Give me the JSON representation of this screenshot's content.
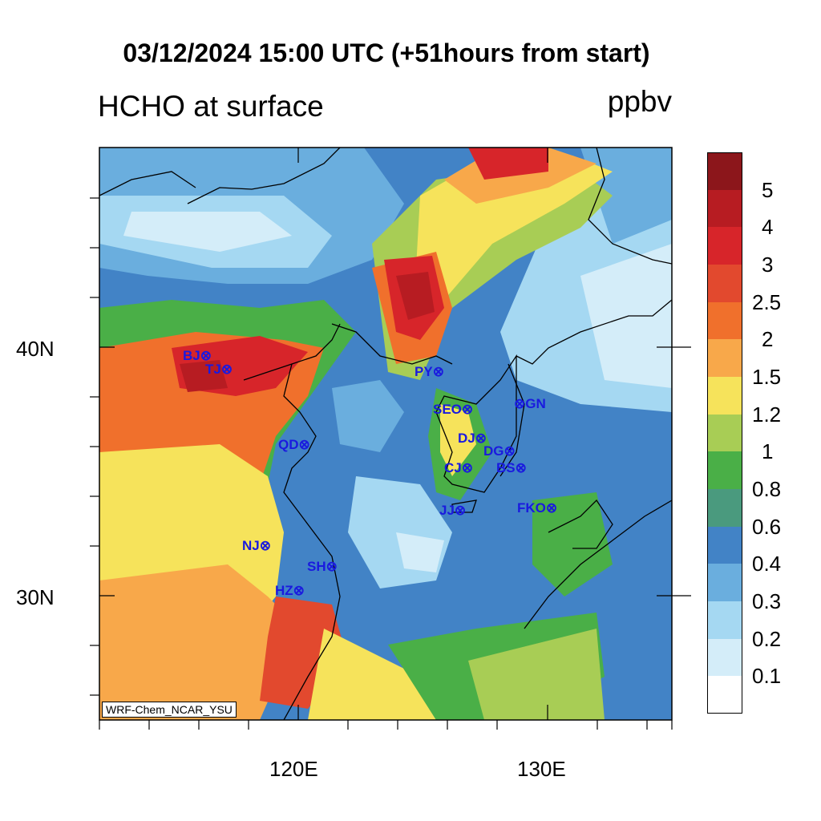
{
  "header": {
    "title": "03/12/2024 15:00 UTC (+51hours from start)",
    "subtitle": "HCHO at surface",
    "units": "ppbv"
  },
  "axes": {
    "lat_labels": [
      "40N",
      "30N"
    ],
    "lon_labels": [
      "120E",
      "130E"
    ]
  },
  "credit": "WRF-Chem_NCAR_YSU",
  "colorbar": {
    "labels": [
      "5",
      "4",
      "3",
      "2.5",
      "2",
      "1.5",
      "1.2",
      "1",
      "0.8",
      "0.6",
      "0.4",
      "0.3",
      "0.2",
      "0.1"
    ],
    "colors": [
      "#8c161b",
      "#b71c22",
      "#d7252a",
      "#e2492e",
      "#f0702c",
      "#f8a84a",
      "#f6e35b",
      "#a8cd55",
      "#4aaf47",
      "#4a9a7e",
      "#4283c6",
      "#6aaede",
      "#a5d8f2",
      "#d4edf9",
      "#ffffff"
    ]
  },
  "stations": [
    {
      "label": "BJ",
      "marker": "⊗"
    },
    {
      "label": "TJ",
      "marker": "⊗"
    },
    {
      "label": "PY",
      "marker": "⊗"
    },
    {
      "label": "GN",
      "marker": "⊗"
    },
    {
      "label": "SEO",
      "marker": "⊗"
    },
    {
      "label": "DJ",
      "marker": "⊗"
    },
    {
      "label": "QD",
      "marker": "⊗"
    },
    {
      "label": "DG",
      "marker": "⊗"
    },
    {
      "label": "CJ",
      "marker": "⊗"
    },
    {
      "label": "BS",
      "marker": "⊗"
    },
    {
      "label": "JJ",
      "marker": "⊗"
    },
    {
      "label": "FKO",
      "marker": "⊗"
    },
    {
      "label": "NJ",
      "marker": "⊗"
    },
    {
      "label": "SH",
      "marker": "⊗"
    },
    {
      "label": "HZ",
      "marker": "⊗"
    }
  ]
}
